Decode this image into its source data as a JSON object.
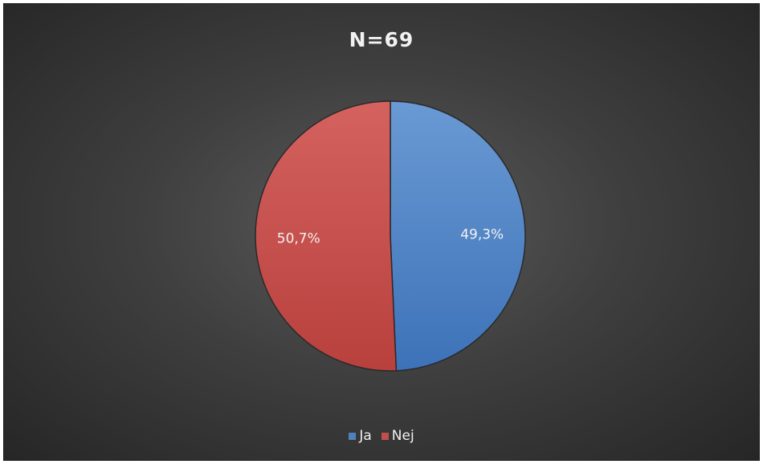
{
  "chart_data": {
    "type": "pie",
    "title": "N=69",
    "categories": [
      "Ja",
      "Nej"
    ],
    "values": [
      49.3,
      50.7
    ],
    "data_labels": [
      "49,3%",
      "50,7%"
    ],
    "colors": [
      "#4f81bd",
      "#c0504d"
    ],
    "legend_placement": "bottom",
    "start_angle_deg": 0,
    "direction": "clockwise"
  }
}
